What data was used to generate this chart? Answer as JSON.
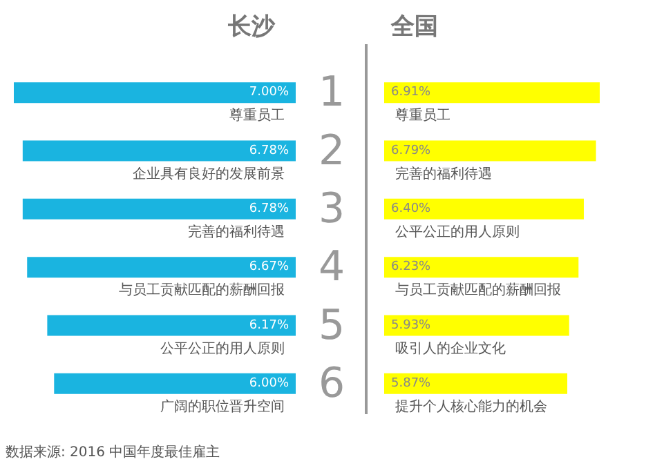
{
  "chart_data": [
    {
      "type": "bar",
      "orientation": "horizontal",
      "title": "长沙",
      "tick_labels": "y",
      "color": "#1ab4e0",
      "categories": [
        "尊重员工",
        "企业具有良好的发展前景",
        "完善的福利待遇",
        "与员工贡献匹配的薪酬回报",
        "公平公正的用人原则",
        "广阔的职位晋升空间"
      ],
      "values": [
        7.0,
        6.78,
        6.78,
        6.67,
        6.17,
        6.0
      ],
      "value_labels": [
        "7.00%",
        "6.78%",
        "6.78%",
        "6.67%",
        "6.17%",
        "6.00%"
      ],
      "annotations": [
        "1",
        "2",
        "3",
        "4",
        "5",
        "6",
        "数据来源: 2016 中国年度最佳雇主"
      ]
    },
    {
      "type": "bar",
      "orientation": "horizontal",
      "title": "全国",
      "tick_labels": "y",
      "color": "#ffff00",
      "categories": [
        "尊重员工",
        "完善的福利待遇",
        "公平公正的用人原则",
        "与员工贡献匹配的薪酬回报",
        "吸引人的企业文化",
        "提升个人核心能力的机会"
      ],
      "values": [
        6.91,
        6.79,
        6.4,
        6.23,
        5.93,
        5.87
      ],
      "value_labels": [
        "6.91%",
        "6.79%",
        "6.40%",
        "6.23%",
        "5.93%",
        "5.87%"
      ]
    }
  ]
}
